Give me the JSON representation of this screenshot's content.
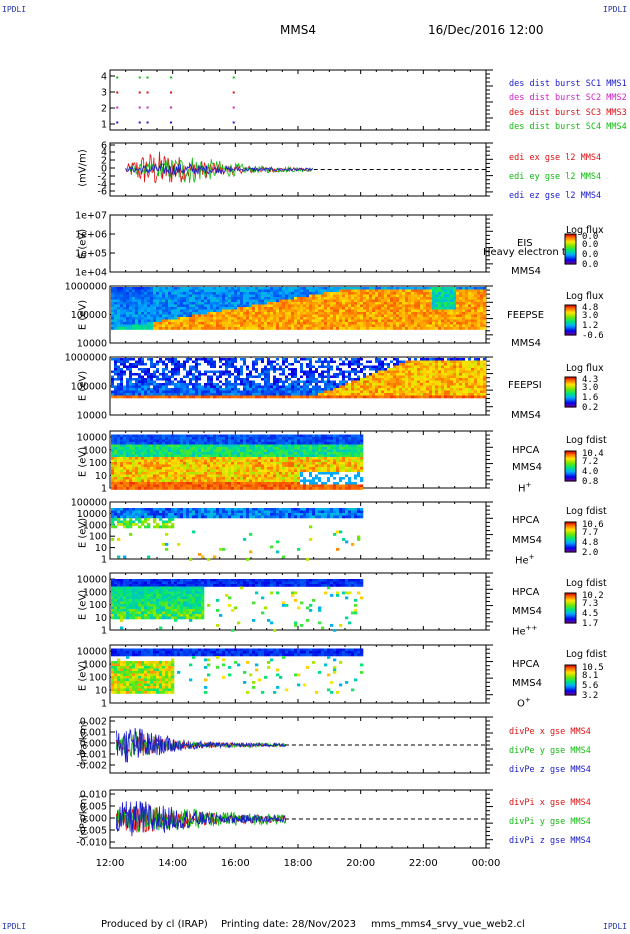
{
  "header": {
    "corner_label": "IPDLI",
    "spacecraft": "MMS4",
    "datetime": "16/Dec/2016 12:00"
  },
  "footer": {
    "produced_by": "Produced by cl (IRAP)",
    "printing_date": "Printing date: 28/Nov/2023",
    "script_name": "mms_mms4_srvy_vue_web2.cl"
  },
  "x_axis": {
    "ticks": [
      "12:00",
      "14:00",
      "16:00",
      "18:00",
      "20:00",
      "22:00",
      "00:00"
    ]
  },
  "panels": {
    "burst": {
      "yticks": [
        "4",
        "3",
        "2",
        "1"
      ],
      "legend": [
        {
          "text": "des dist burst SC1 MMS1",
          "color": "#1a1acc"
        },
        {
          "text": "des dist burst SC2 MMS2",
          "color": "#cc22cc"
        },
        {
          "text": "des dist burst SC3 MMS3",
          "color": "#dd1111"
        },
        {
          "text": "des dist burst SC4 MMS4",
          "color": "#11bb11"
        }
      ]
    },
    "edi": {
      "ylabel": "(mV/m)",
      "yticks": [
        "6",
        "4",
        "2",
        "0",
        "-2",
        "-4",
        "-6"
      ],
      "legend": [
        {
          "text": "edi ex gse l2 MMS4",
          "color": "#dd1111"
        },
        {
          "text": "edi ey gse l2 MMS4",
          "color": "#11bb11"
        },
        {
          "text": "edi ez gse l2 MMS4",
          "color": "#1a1acc"
        }
      ]
    },
    "eis": {
      "ylabel": "E (eV)",
      "yticks": [
        "1e+07",
        "1e+06",
        "1e+05",
        "1e+04"
      ],
      "instrument": "EIS",
      "species": "Heavy electron to",
      "spacecraft": "MMS4",
      "cb_title": "Log flux",
      "cb_values": [
        "0.0",
        "0.0",
        "0.0",
        "0.0"
      ]
    },
    "feepse": {
      "ylabel": "E (eV)",
      "yticks": [
        "1000000",
        "100000",
        "10000"
      ],
      "instrument": "FEEPSE",
      "spacecraft": "MMS4",
      "cb_title": "Log flux",
      "cb_values": [
        "4.8",
        "3.0",
        "1.2",
        "-0.6"
      ]
    },
    "feepsi": {
      "ylabel": "E (eV)",
      "yticks": [
        "1000000",
        "100000",
        "10000"
      ],
      "instrument": "FEEPSI",
      "spacecraft": "MMS4",
      "cb_title": "Log flux",
      "cb_values": [
        "4.3",
        "3.0",
        "1.6",
        "0.2"
      ]
    },
    "hpca_h": {
      "ylabel": "E (eV)",
      "yticks": [
        "10000",
        "1000",
        "100",
        "10",
        "1"
      ],
      "instrument": "HPCA",
      "spacecraft": "MMS4",
      "species_base": "H",
      "species_sup": "+",
      "cb_title": "Log fdist",
      "cb_values": [
        "10.4",
        "7.2",
        "4.0",
        "0.8"
      ]
    },
    "hpca_he": {
      "ylabel": "E (eV)",
      "yticks": [
        "100000",
        "10000",
        "1000",
        "100",
        "10",
        "1"
      ],
      "instrument": "HPCA",
      "spacecraft": "MMS4",
      "species_base": "He",
      "species_sup": "+",
      "cb_title": "Log fdist",
      "cb_values": [
        "10.6",
        "7.7",
        "4.8",
        "2.0"
      ]
    },
    "hpca_he2": {
      "ylabel": "E (eV)",
      "yticks": [
        "10000",
        "1000",
        "100",
        "10",
        "1"
      ],
      "instrument": "HPCA",
      "spacecraft": "MMS4",
      "species_base": "He",
      "species_sup": "++",
      "cb_title": "Log fdist",
      "cb_values": [
        "10.2",
        "7.3",
        "4.5",
        "1.7"
      ]
    },
    "hpca_o": {
      "ylabel": "E (eV)",
      "yticks": [
        "10000",
        "1000",
        "100",
        "10",
        "1"
      ],
      "instrument": "HPCA",
      "spacecraft": "MMS4",
      "species_base": "O",
      "species_sup": "+",
      "cb_title": "Log fdist",
      "cb_values": [
        "10.5",
        "8.1",
        "5.6",
        "3.2"
      ]
    },
    "divpe": {
      "ylabel": "(nPa/km)",
      "yticks": [
        "0.002",
        "0.001",
        "0.000",
        "-0.001",
        "-0.002"
      ],
      "legend": [
        {
          "text": "divPe x gse MMS4",
          "color": "#dd1111"
        },
        {
          "text": "divPe y gse MMS4",
          "color": "#11bb11"
        },
        {
          "text": "divPe z gse MMS4",
          "color": "#1a1acc"
        }
      ]
    },
    "divpi": {
      "ylabel": "(nPa/km)",
      "yticks": [
        "0.010",
        "0.005",
        "0.000",
        "-0.005",
        "-0.010"
      ],
      "legend": [
        {
          "text": "divPi x gse MMS4",
          "color": "#dd1111"
        },
        {
          "text": "divPi y gse MMS4",
          "color": "#11bb11"
        },
        {
          "text": "divPi z gse MMS4",
          "color": "#1a1acc"
        }
      ]
    }
  },
  "chart_data": [
    {
      "type": "scatter",
      "panel": "burst",
      "x_range": [
        "12:00",
        "00:00"
      ],
      "ylim": [
        0.5,
        4.5
      ],
      "series": [
        {
          "name": "des dist burst SC1 MMS1",
          "y": 1,
          "x": [
            "12:12",
            "12:55",
            "13:10",
            "13:55",
            "15:55"
          ]
        },
        {
          "name": "des dist burst SC2 MMS2",
          "y": 2,
          "x": [
            "12:12",
            "12:55",
            "13:10",
            "13:55",
            "15:55"
          ]
        },
        {
          "name": "des dist burst SC3 MMS3",
          "y": 3,
          "x": [
            "12:12",
            "12:55",
            "13:10",
            "13:55",
            "15:55"
          ]
        },
        {
          "name": "des dist burst SC4 MMS4",
          "y": 4,
          "x": [
            "12:12",
            "12:55",
            "13:10",
            "13:55",
            "15:55"
          ]
        }
      ]
    },
    {
      "type": "line",
      "panel": "edi",
      "x_range": [
        "12:00",
        "00:00"
      ],
      "ylim": [
        -6,
        6
      ],
      "data_end": "18:30",
      "reference_line": 0,
      "series": [
        {
          "name": "edi ex gse l2 MMS4",
          "amplitude_profile": [
            [
              12.5,
              1.0
            ],
            [
              13.0,
              4.0
            ],
            [
              13.5,
              5.0
            ],
            [
              14.5,
              3.0
            ],
            [
              15.5,
              1.5
            ],
            [
              16.5,
              0.8
            ],
            [
              18.5,
              0.4
            ]
          ]
        },
        {
          "name": "edi ey gse l2 MMS4",
          "amplitude_profile": [
            [
              12.5,
              0.8
            ],
            [
              13.5,
              2.0
            ],
            [
              14.5,
              4.0
            ],
            [
              15.0,
              3.0
            ],
            [
              16.5,
              1.0
            ],
            [
              18.5,
              0.5
            ]
          ]
        },
        {
          "name": "edi ez gse l2 MMS4",
          "amplitude_profile": [
            [
              12.5,
              0.5
            ],
            [
              13.5,
              1.5
            ],
            [
              14.5,
              1.5
            ],
            [
              16.0,
              0.6
            ],
            [
              18.5,
              0.3
            ]
          ]
        }
      ]
    },
    {
      "type": "heatmap",
      "panel": "eis",
      "x_range": [
        "12:00",
        "00:00"
      ],
      "ylim_eV": [
        10000,
        10000000
      ],
      "scale": "log",
      "cb_range": [
        0.0,
        0.0
      ]
    },
    {
      "type": "heatmap",
      "panel": "feepse",
      "x_range": [
        "12:00",
        "00:00"
      ],
      "ylim_eV": [
        10000,
        1000000
      ],
      "scale": "log",
      "cb_range": [
        -0.6,
        4.8
      ]
    },
    {
      "type": "heatmap",
      "panel": "feepsi",
      "x_range": [
        "12:00",
        "00:00"
      ],
      "ylim_eV": [
        10000,
        1000000
      ],
      "scale": "log",
      "cb_range": [
        0.2,
        4.3
      ]
    },
    {
      "type": "heatmap",
      "panel": "hpca_h",
      "x_range": [
        "12:00",
        "00:00"
      ],
      "data_end": "20:00",
      "ylim_eV": [
        1,
        30000
      ],
      "scale": "log",
      "cb_range": [
        0.8,
        10.4
      ]
    },
    {
      "type": "heatmap",
      "panel": "hpca_he",
      "x_range": [
        "12:00",
        "00:00"
      ],
      "data_end": "20:00",
      "ylim_eV": [
        1,
        100000
      ],
      "scale": "log",
      "cb_range": [
        2.0,
        10.6
      ]
    },
    {
      "type": "heatmap",
      "panel": "hpca_he2",
      "x_range": [
        "12:00",
        "00:00"
      ],
      "data_end": "20:00",
      "ylim_eV": [
        1,
        30000
      ],
      "scale": "log",
      "cb_range": [
        1.7,
        10.2
      ]
    },
    {
      "type": "heatmap",
      "panel": "hpca_o",
      "x_range": [
        "12:00",
        "00:00"
      ],
      "data_end": "20:00",
      "ylim_eV": [
        1,
        30000
      ],
      "scale": "log",
      "cb_range": [
        3.2,
        10.5
      ]
    },
    {
      "type": "line",
      "panel": "divpe",
      "x_range": [
        "12:00",
        "00:00"
      ],
      "ylim": [
        -0.0025,
        0.0025
      ],
      "data_end": "17:35",
      "reference_line": 0,
      "series": [
        {
          "name": "divPe x gse MMS4",
          "amplitude_profile": [
            [
              12.2,
              0.0005
            ],
            [
              12.8,
              0.0012
            ],
            [
              13.5,
              0.0008
            ],
            [
              14.5,
              0.0003
            ],
            [
              16.0,
              0.0002
            ],
            [
              17.6,
              0.00015
            ]
          ]
        },
        {
          "name": "divPe y gse MMS4",
          "amplitude_profile": [
            [
              12.2,
              0.0006
            ],
            [
              12.8,
              0.0013
            ],
            [
              13.5,
              0.0008
            ],
            [
              14.5,
              0.0003
            ],
            [
              16.0,
              0.0002
            ],
            [
              17.6,
              0.00015
            ]
          ]
        },
        {
          "name": "divPe z gse MMS4",
          "amplitude_profile": [
            [
              12.2,
              0.0015
            ],
            [
              12.8,
              0.0018
            ],
            [
              13.5,
              0.001
            ],
            [
              14.5,
              0.0004
            ],
            [
              16.0,
              0.0002
            ],
            [
              17.6,
              0.00015
            ]
          ]
        }
      ]
    },
    {
      "type": "line",
      "panel": "divpi",
      "x_range": [
        "12:00",
        "00:00"
      ],
      "ylim": [
        -0.012,
        0.012
      ],
      "data_end": "17:35",
      "reference_line": 0,
      "series": [
        {
          "name": "divPi x gse MMS4",
          "amplitude_profile": [
            [
              12.2,
              0.004
            ],
            [
              13.0,
              0.006
            ],
            [
              14.0,
              0.004
            ],
            [
              15.5,
              0.002
            ],
            [
              17.6,
              0.0015
            ]
          ]
        },
        {
          "name": "divPi y gse MMS4",
          "amplitude_profile": [
            [
              12.2,
              0.004
            ],
            [
              13.0,
              0.006
            ],
            [
              14.0,
              0.005
            ],
            [
              15.5,
              0.003
            ],
            [
              17.6,
              0.002
            ]
          ]
        },
        {
          "name": "divPi z gse MMS4",
          "amplitude_profile": [
            [
              12.2,
              0.007
            ],
            [
              13.0,
              0.008
            ],
            [
              14.0,
              0.005
            ],
            [
              15.5,
              0.002
            ],
            [
              17.6,
              0.0015
            ]
          ]
        }
      ]
    }
  ]
}
